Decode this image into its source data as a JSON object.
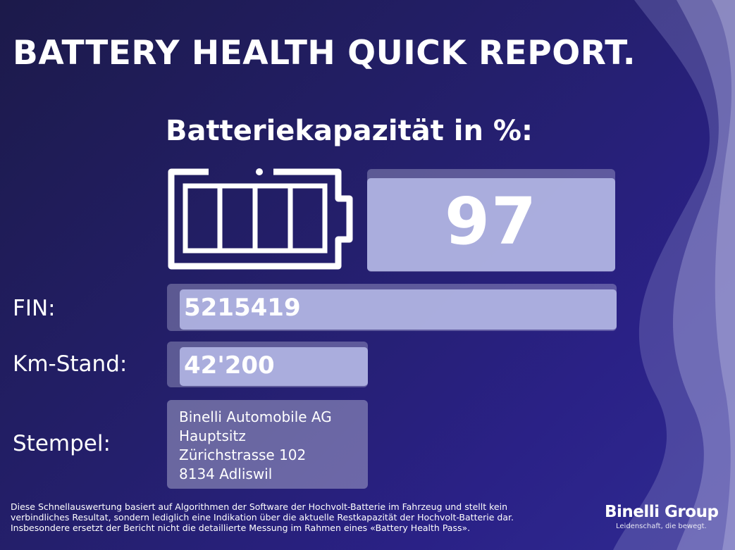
{
  "header": {
    "title": "BATTERY HEALTH QUICK REPORT."
  },
  "capacity": {
    "label": "Batteriekapazität in %:",
    "value": "97",
    "battery_icon": "battery-full-icon"
  },
  "fin": {
    "label": "FIN:",
    "value": "5215419"
  },
  "km": {
    "label": "Km-Stand:",
    "value": "42'200"
  },
  "stamp": {
    "label": "Stempel:",
    "lines": [
      "Binelli Automobile AG",
      "Hauptsitz",
      "Zürichstrasse 102",
      "8134 Adliswil"
    ]
  },
  "disclaimer": {
    "lines": [
      "Diese Schnellauswertung basiert auf Algorithmen der Software der Hochvolt-Batterie im Fahrzeug und stellt kein",
      "verbindliches Resultat, sondern lediglich eine Indikation über die aktuelle Restkapazität der Hochvolt-Batterie dar.",
      "Insbesondere ersetzt der Bericht nicht die detaillierte Messung im Rahmen eines «Battery Health Pass»."
    ]
  },
  "brand": {
    "name": "Binelli Group",
    "tagline": "Leidenschaft, die bewegt."
  },
  "colors": {
    "background": "#241f6c",
    "box": "#b2b6e4",
    "text": "#ffffff"
  }
}
